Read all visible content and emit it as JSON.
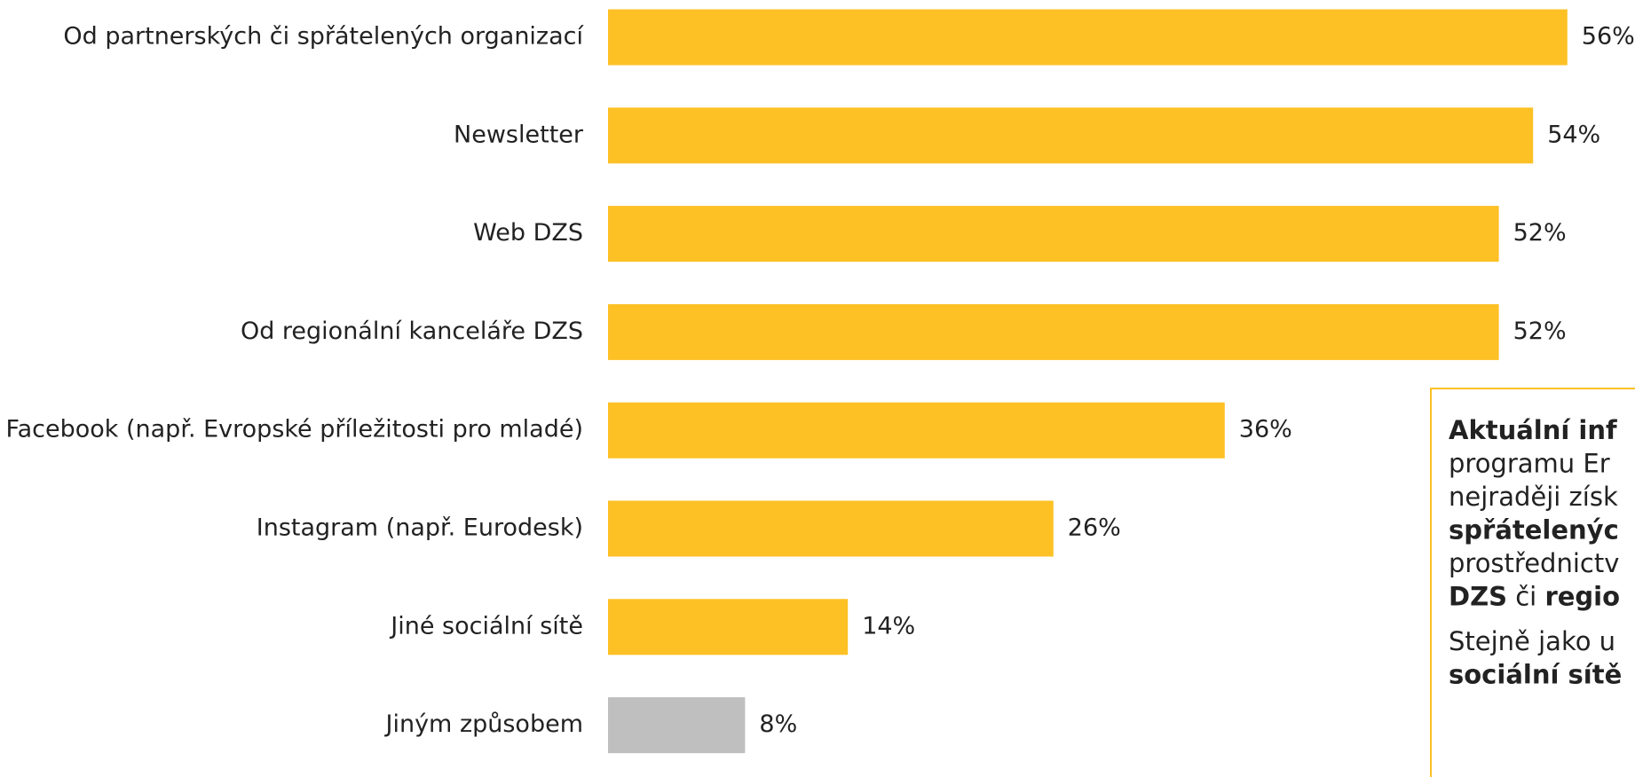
{
  "chart_data": {
    "type": "barh",
    "categories": [
      "Od partnerských či spřátelených organizací",
      "Newsletter",
      "Web DZS",
      "Od regionální kanceláře DZS",
      "Facebook (např. Evropské příležitosti pro mladé)",
      "Instagram (např. Eurodesk)",
      "Jiné sociální sítě",
      "Jiným způsobem"
    ],
    "values": [
      56,
      54,
      52,
      52,
      36,
      26,
      14,
      8
    ],
    "value_labels": [
      "56%",
      "54%",
      "52%",
      "52%",
      "36%",
      "26%",
      "14%",
      "8%"
    ],
    "colors": [
      "#fdc125",
      "#fdc125",
      "#fdc125",
      "#fdc125",
      "#fdc125",
      "#fdc125",
      "#fdc125",
      "#bfbfbf"
    ]
  },
  "note": {
    "paragraphs": [
      [
        [
          {
            "text": "Aktuální inf",
            "bold": true
          }
        ],
        [
          {
            "text": "programu Er",
            "bold": false
          }
        ],
        [
          {
            "text": "nejraději získ",
            "bold": false
          }
        ],
        [
          {
            "text": "spřátelenýc",
            "bold": true
          }
        ],
        [
          {
            "text": "prostřednictv",
            "bold": false
          }
        ],
        [
          {
            "text": "DZS",
            "bold": true
          },
          {
            "text": " či ",
            "bold": false
          },
          {
            "text": "regio",
            "bold": true
          }
        ]
      ],
      [
        [
          {
            "text": "Stejně jako u",
            "bold": false
          }
        ],
        [
          {
            "text": "sociální sítě",
            "bold": true
          }
        ]
      ]
    ]
  }
}
